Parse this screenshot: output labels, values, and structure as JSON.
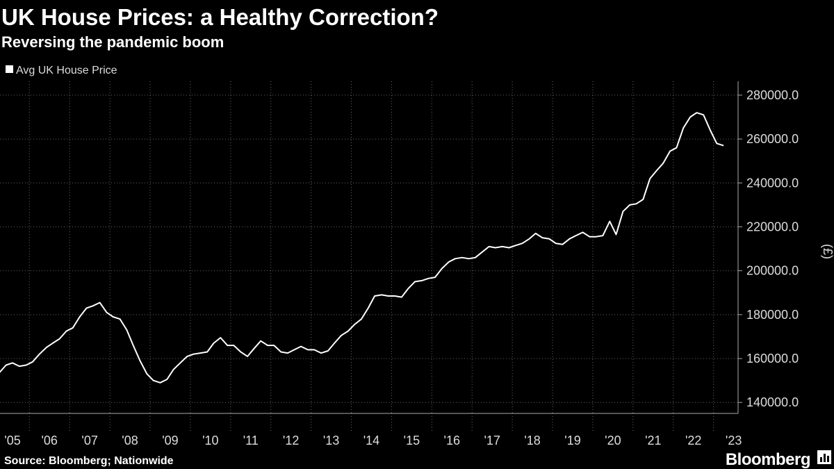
{
  "chart_data": {
    "type": "line",
    "title": "UK House Prices: a Healthy Correction?",
    "subtitle": "Reversing the pandemic boom",
    "y_label": "(£)",
    "source": "Source: Bloomberg; Nationwide",
    "brand": "Bloomberg",
    "grid": true,
    "legend": "top-left",
    "x": [
      2005.25,
      2005.42,
      2005.58,
      2005.75,
      2005.92,
      2006.08,
      2006.25,
      2006.42,
      2006.58,
      2006.75,
      2006.92,
      2007.08,
      2007.25,
      2007.42,
      2007.58,
      2007.75,
      2007.92,
      2008.08,
      2008.25,
      2008.42,
      2008.58,
      2008.75,
      2008.92,
      2009.08,
      2009.25,
      2009.42,
      2009.58,
      2009.75,
      2009.92,
      2010.08,
      2010.25,
      2010.42,
      2010.58,
      2010.75,
      2010.92,
      2011.08,
      2011.25,
      2011.42,
      2011.58,
      2011.75,
      2011.92,
      2012.08,
      2012.25,
      2012.42,
      2012.58,
      2012.75,
      2012.92,
      2013.08,
      2013.25,
      2013.42,
      2013.58,
      2013.75,
      2013.92,
      2014.08,
      2014.25,
      2014.42,
      2014.58,
      2014.75,
      2014.92,
      2015.08,
      2015.25,
      2015.42,
      2015.58,
      2015.75,
      2015.92,
      2016.08,
      2016.25,
      2016.42,
      2016.58,
      2016.75,
      2016.92,
      2017.08,
      2017.25,
      2017.42,
      2017.58,
      2017.75,
      2017.92,
      2018.08,
      2018.25,
      2018.42,
      2018.58,
      2018.75,
      2018.92,
      2019.08,
      2019.25,
      2019.42,
      2019.58,
      2019.75,
      2019.92,
      2020.08,
      2020.25,
      2020.42,
      2020.58,
      2020.75,
      2020.92,
      2021.08,
      2021.25,
      2021.42,
      2021.58,
      2021.75,
      2021.92,
      2022.08,
      2022.25,
      2022.42,
      2022.58,
      2022.75,
      2022.92,
      2023.08,
      2023.25
    ],
    "series": [
      {
        "name": "Avg UK House Price",
        "color": "#ffffff",
        "values": [
          153500,
          157000,
          158000,
          156500,
          157000,
          158500,
          162000,
          165000,
          167000,
          169000,
          172500,
          174000,
          179000,
          183000,
          184000,
          185500,
          181000,
          179000,
          178000,
          173000,
          166000,
          159000,
          153000,
          150000,
          149000,
          150500,
          155000,
          158000,
          161000,
          162000,
          162500,
          163000,
          167000,
          169500,
          166000,
          166000,
          163000,
          161000,
          164500,
          168000,
          166000,
          166000,
          163000,
          162500,
          164000,
          165500,
          164000,
          164000,
          162500,
          163500,
          167000,
          170500,
          172500,
          175500,
          178000,
          183000,
          188500,
          189000,
          188500,
          188500,
          188000,
          192000,
          195000,
          195500,
          196500,
          197000,
          201000,
          204000,
          205500,
          206000,
          205500,
          206000,
          208500,
          211000,
          210500,
          211000,
          210500,
          211500,
          212500,
          214500,
          217000,
          215000,
          214500,
          212500,
          212000,
          214500,
          216000,
          217500,
          215500,
          215500,
          216000,
          222500,
          216500,
          227000,
          230000,
          230500,
          232500,
          242000,
          245500,
          249000,
          254500,
          256000,
          265000,
          270000,
          272000,
          271000,
          264000,
          258000,
          257000
        ]
      }
    ],
    "xlim": [
      2005.27,
      2023.61
    ],
    "xticks": [
      {
        "value": 2005,
        "label": "'05"
      },
      {
        "value": 2006,
        "label": "'06"
      },
      {
        "value": 2007,
        "label": "'07"
      },
      {
        "value": 2008,
        "label": "'08"
      },
      {
        "value": 2009,
        "label": "'09"
      },
      {
        "value": 2010,
        "label": "'10"
      },
      {
        "value": 2011,
        "label": "'11"
      },
      {
        "value": 2012,
        "label": "'12"
      },
      {
        "value": 2013,
        "label": "'13"
      },
      {
        "value": 2014,
        "label": "'14"
      },
      {
        "value": 2015,
        "label": "'15"
      },
      {
        "value": 2016,
        "label": "'16"
      },
      {
        "value": 2017,
        "label": "'17"
      },
      {
        "value": 2018,
        "label": "'18"
      },
      {
        "value": 2019,
        "label": "'19"
      },
      {
        "value": 2020,
        "label": "'20"
      },
      {
        "value": 2021,
        "label": "'21"
      },
      {
        "value": 2022,
        "label": "'22"
      },
      {
        "value": 2023,
        "label": "'23"
      }
    ],
    "ylim": [
      135000,
      286300
    ],
    "yticks": [
      {
        "value": 140000,
        "label": "140000.0"
      },
      {
        "value": 160000,
        "label": "160000.0"
      },
      {
        "value": 180000,
        "label": "180000.0"
      },
      {
        "value": 200000,
        "label": "200000.0"
      },
      {
        "value": 220000,
        "label": "220000.0"
      },
      {
        "value": 240000,
        "label": "240000.0"
      },
      {
        "value": 260000,
        "label": "260000.0"
      },
      {
        "value": 280000,
        "label": "280000.0"
      }
    ]
  }
}
